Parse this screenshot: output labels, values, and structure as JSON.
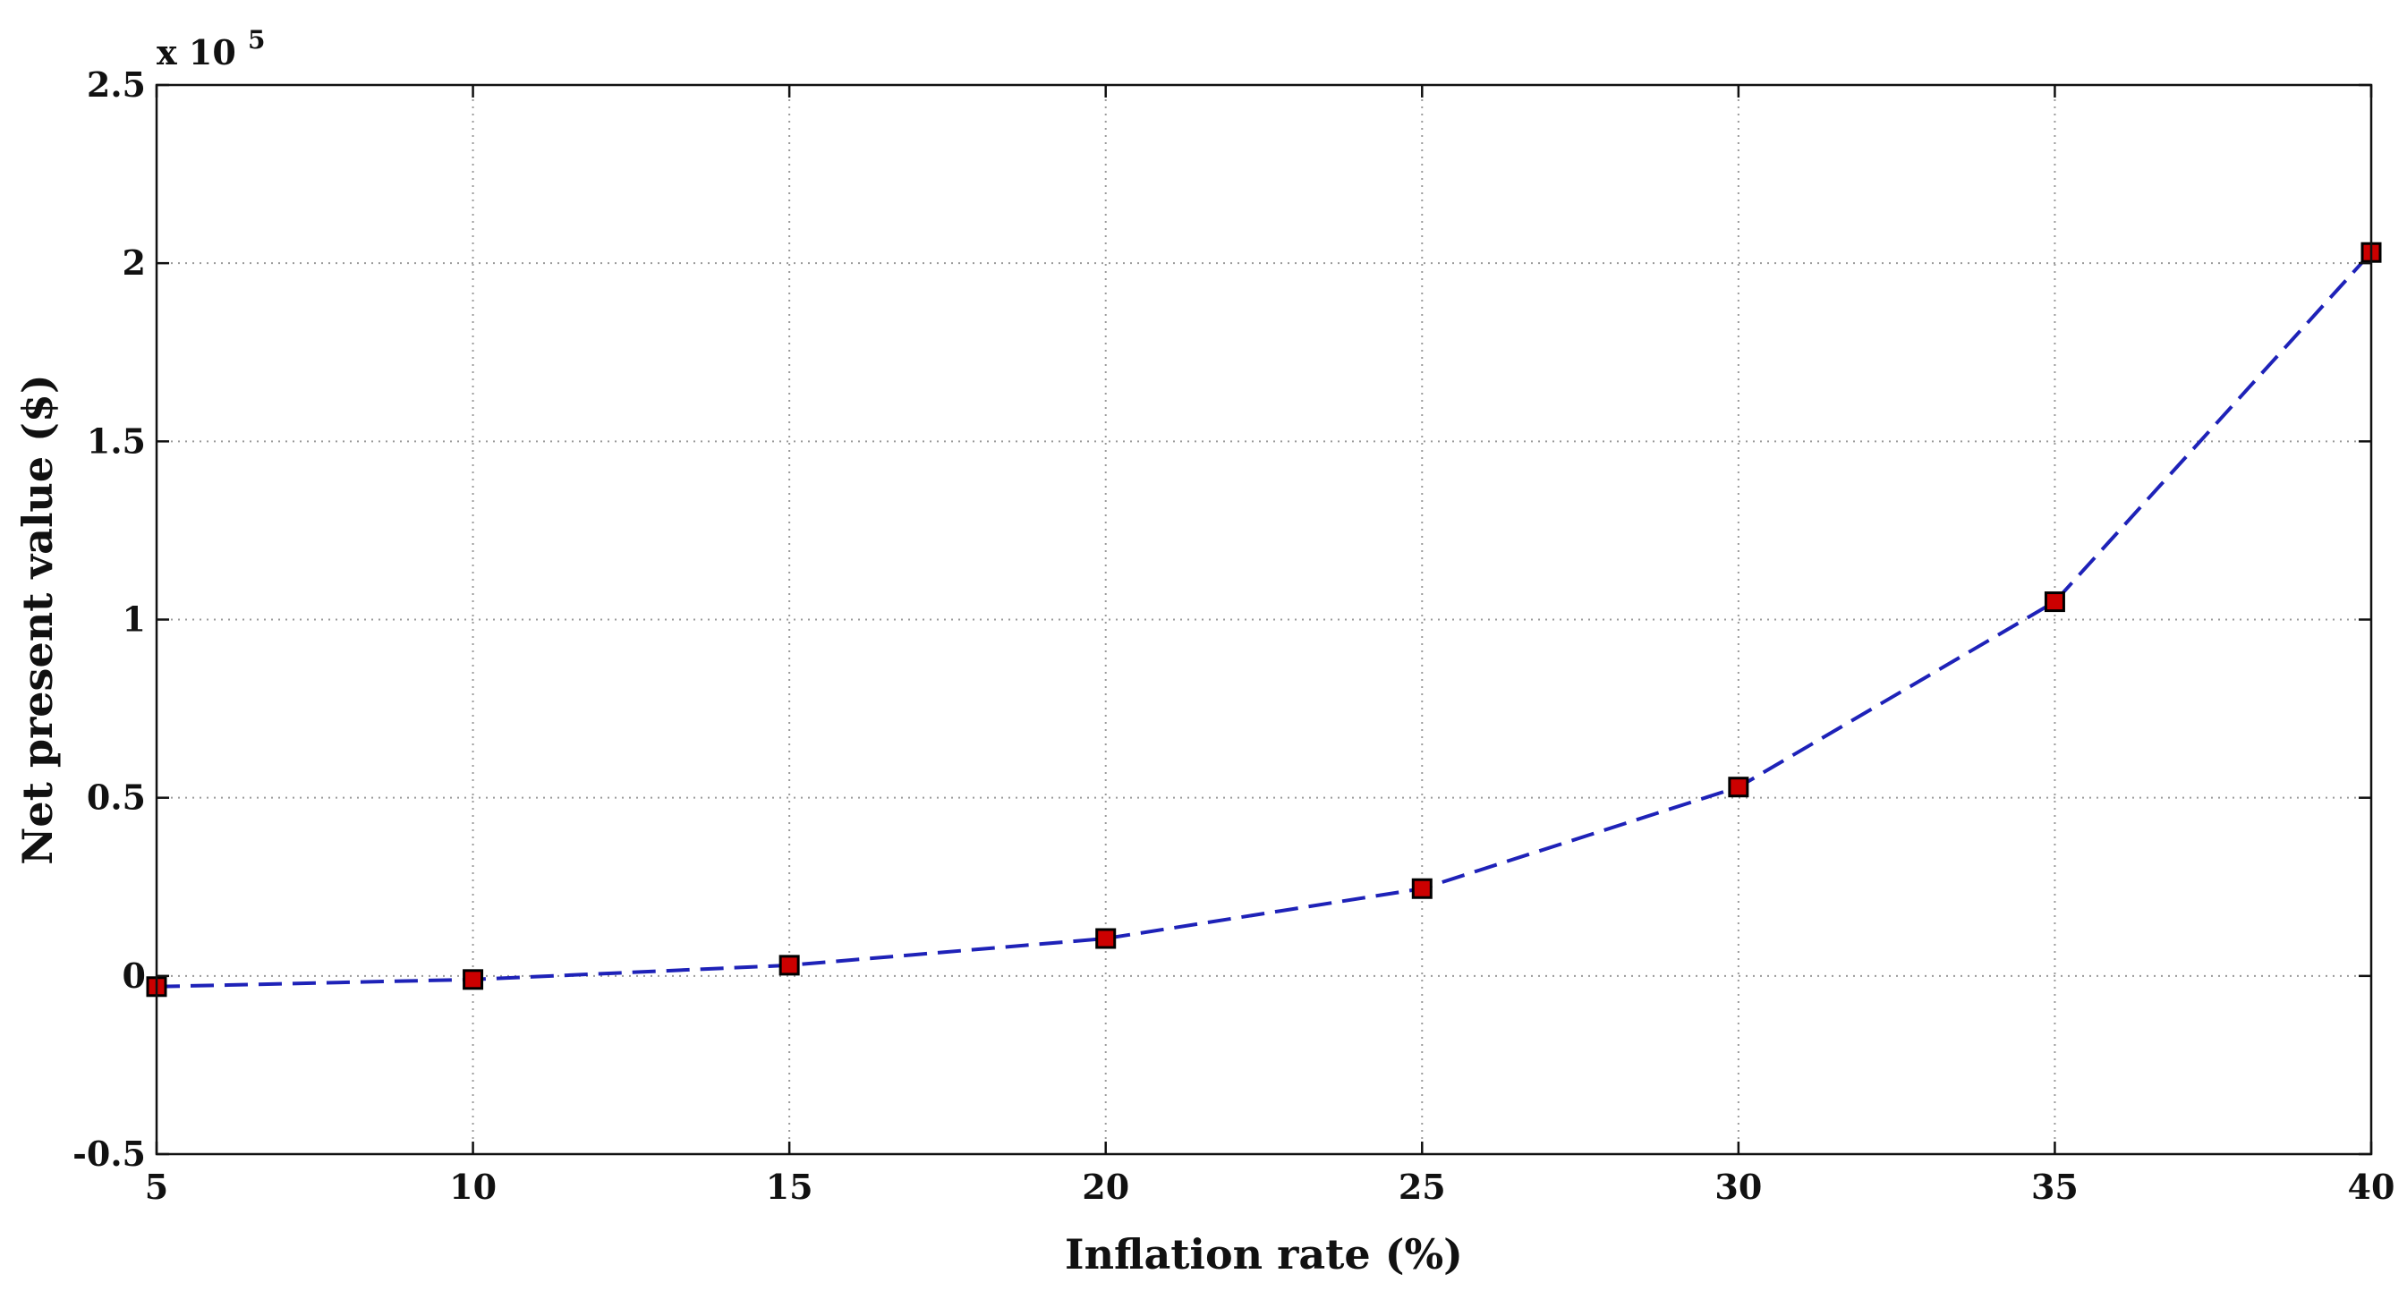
{
  "chart_data": {
    "type": "line",
    "xlabel": "Inflation rate (%)",
    "ylabel": "Net present value ($)",
    "y_multiplier_label": "x 10",
    "y_multiplier_exponent": "5",
    "xlim": [
      5,
      40
    ],
    "ylim": [
      -0.5,
      2.5
    ],
    "x_ticks": [
      "5",
      "10",
      "15",
      "20",
      "25",
      "30",
      "35",
      "40"
    ],
    "y_ticks": [
      "-0.5",
      "0",
      "0.5",
      "1",
      "1.5",
      "2",
      "2.5"
    ],
    "grid": true,
    "series": [
      {
        "x": [
          5,
          10,
          15,
          20,
          25,
          30,
          35,
          40
        ],
        "y": [
          -0.03,
          -0.01,
          0.03,
          0.105,
          0.245,
          0.53,
          1.05,
          2.03
        ],
        "line_style": "dashed",
        "line_color": "#1e22b8",
        "marker": "square",
        "marker_color": "#cc0000"
      }
    ]
  }
}
